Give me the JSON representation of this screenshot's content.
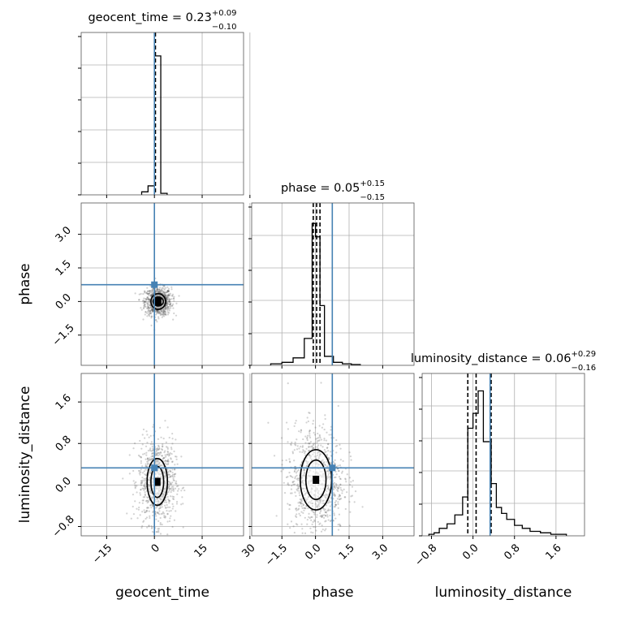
{
  "chart_data": {
    "type": "corner",
    "parameters": [
      "geocent_time",
      "phase",
      "luminosity_distance"
    ],
    "titles": [
      {
        "param": "geocent_time",
        "label": "geocent_time = 0.23",
        "plus": "+0.09",
        "minus": "−0.10"
      },
      {
        "param": "phase",
        "label": "phase = 0.05",
        "plus": "+0.15",
        "minus": "−0.15"
      },
      {
        "param": "luminosity_distance",
        "label": "luminosity_distance = 0.06",
        "plus": "+0.29",
        "minus": "−0.16"
      }
    ],
    "ranges": {
      "geocent_time": [
        -23,
        28
      ],
      "phase": [
        -2.85,
        4.4
      ],
      "luminosity_distance": [
        -0.98,
        2.15
      ]
    },
    "ticks": {
      "geocent_time": {
        "values": [
          -15,
          0,
          15,
          30
        ],
        "labels": [
          "−15",
          "0",
          "15",
          "30"
        ]
      },
      "phase": {
        "values": [
          -1.5,
          0.0,
          1.5,
          3.0
        ],
        "labels": [
          "−1.5",
          "0.0",
          "1.5",
          "3.0"
        ]
      },
      "luminosity_distance": {
        "values": [
          -0.8,
          0.0,
          0.8,
          1.6
        ],
        "labels": [
          "−0.8",
          "0.0",
          "0.8",
          "1.6"
        ]
      }
    },
    "truths": {
      "geocent_time": 0.0,
      "phase": 0.75,
      "luminosity_distance": 0.33
    },
    "quantiles": {
      "geocent_time": [
        0.13,
        0.23,
        0.32
      ],
      "phase": [
        -0.1,
        0.05,
        0.2
      ],
      "luminosity_distance": [
        -0.1,
        0.06,
        0.35
      ]
    },
    "histograms": {
      "geocent_time": {
        "edges": [
          -4,
          -2,
          0,
          2,
          4
        ],
        "counts": [
          0.02,
          0.06,
          0.93,
          0.01
        ]
      },
      "phase": {
        "edges": [
          -2.0,
          -1.5,
          -1.0,
          -0.5,
          -0.15,
          0.0,
          0.2,
          0.4,
          0.8,
          1.2,
          1.6,
          2.0
        ],
        "counts": [
          0.01,
          0.02,
          0.05,
          0.18,
          0.95,
          0.86,
          0.4,
          0.06,
          0.02,
          0.01,
          0.005
        ]
      },
      "luminosity_distance": {
        "edges": [
          -0.85,
          -0.75,
          -0.65,
          -0.5,
          -0.35,
          -0.2,
          -0.1,
          0.0,
          0.1,
          0.2,
          0.35,
          0.45,
          0.55,
          0.65,
          0.8,
          0.95,
          1.1,
          1.3,
          1.5,
          1.8
        ],
        "counts": [
          0.01,
          0.02,
          0.05,
          0.08,
          0.14,
          0.26,
          0.72,
          0.82,
          0.97,
          0.63,
          0.35,
          0.19,
          0.15,
          0.11,
          0.07,
          0.05,
          0.03,
          0.02,
          0.01
        ]
      }
    },
    "contours": [
      {
        "x": "geocent_time",
        "y": "phase",
        "center": [
          1.2,
          0.0
        ],
        "levels": [
          {
            "rx": 2.3,
            "ry": 0.35
          },
          {
            "rx": 1.6,
            "ry": 0.2
          }
        ]
      },
      {
        "x": "geocent_time",
        "y": "luminosity_distance",
        "center": [
          0.9,
          0.06
        ],
        "levels": [
          {
            "rx": 3.2,
            "ry": 0.45
          },
          {
            "rx": 2.0,
            "ry": 0.3
          }
        ]
      },
      {
        "x": "phase",
        "y": "luminosity_distance",
        "center": [
          0.02,
          0.1
        ],
        "levels": [
          {
            "rx": 0.7,
            "ry": 0.58
          },
          {
            "rx": 0.45,
            "ry": 0.38
          }
        ]
      }
    ],
    "colors": {
      "hist": "#000000",
      "truth": "#4682b4",
      "grid": "#b0b0b0",
      "points": "#4d4d4d"
    },
    "grid": true
  }
}
